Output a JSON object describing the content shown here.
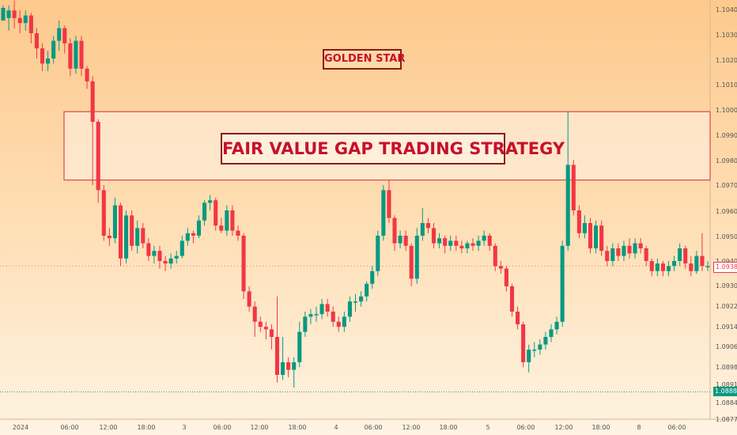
{
  "chart_data": {
    "type": "candlestick",
    "colors": {
      "up": "#089981",
      "down": "#f23645",
      "zone_border": "#e0454f",
      "dotted_line": "#3c8a73"
    },
    "annotations": {
      "golden_star": "GOLDEN STAR",
      "strategy_title": "FAIR VALUE GAP TRADING STRATEGY"
    },
    "fvg_zone": {
      "top": 1.0999,
      "bottom": 1.0972
    },
    "y_ticks": [
      "1.10400",
      "1.10300",
      "1.10200",
      "1.10100",
      "1.10000",
      "1.09900",
      "1.09800",
      "1.09700",
      "1.09600",
      "1.09500",
      "1.09400",
      "1.09300",
      "1.09220",
      "1.09140",
      "1.09060",
      "1.08980",
      "1.08910",
      "1.08840",
      "1.08775"
    ],
    "x_ticks": [
      "2024",
      "06:00",
      "12:00",
      "18:00",
      "3",
      "06:00",
      "12:00",
      "18:00",
      "4",
      "06:00",
      "12:00",
      "18:00",
      "5",
      "06:00",
      "12:00",
      "18:00",
      "8",
      "06:00"
    ],
    "price_tags": {
      "current": "1.09380",
      "last": "1.08883"
    },
    "last_price_line": 1.08883,
    "candles": [
      [
        1.1035,
        1.104,
        1.1036,
        1.1041
      ],
      [
        1.1036,
        1.1039,
        1.1031,
        1.1041
      ],
      [
        1.1039,
        1.1036,
        1.1032,
        1.1043
      ],
      [
        1.1036,
        1.1034,
        1.103,
        1.1039
      ],
      [
        1.1034,
        1.1037,
        1.1031,
        1.1039
      ],
      [
        1.1037,
        1.103,
        1.1026,
        1.1038
      ],
      [
        1.103,
        1.1024,
        1.102,
        1.1032
      ],
      [
        1.1024,
        1.1018,
        1.1015,
        1.1026
      ],
      [
        1.1018,
        1.102,
        1.1015,
        1.1023
      ],
      [
        1.102,
        1.1027,
        1.1018,
        1.1029
      ],
      [
        1.1027,
        1.1032,
        1.1023,
        1.1035
      ],
      [
        1.1032,
        1.1026,
        1.1022,
        1.1033
      ],
      [
        1.1026,
        1.1016,
        1.1013,
        1.1028
      ],
      [
        1.1016,
        1.1027,
        1.1014,
        1.1029
      ],
      [
        1.1027,
        1.1016,
        1.1013,
        1.1029
      ],
      [
        1.1016,
        1.1011,
        1.1008,
        1.1017
      ],
      [
        1.1011,
        1.0995,
        1.097,
        1.1013
      ],
      [
        1.0995,
        1.0968,
        1.0963,
        1.0996
      ],
      [
        1.0968,
        1.095,
        1.0948,
        1.097
      ],
      [
        1.095,
        1.0949,
        1.0946,
        1.0953
      ],
      [
        1.0949,
        1.0962,
        1.0947,
        1.0965
      ],
      [
        1.0962,
        1.0941,
        1.0938,
        1.0963
      ],
      [
        1.0941,
        1.0958,
        1.0939,
        1.096
      ],
      [
        1.0958,
        1.0946,
        1.0944,
        1.096
      ],
      [
        1.0946,
        1.0953,
        1.0943,
        1.0956
      ],
      [
        1.0953,
        1.0947,
        1.0945,
        1.0955
      ],
      [
        1.0947,
        1.0942,
        1.094,
        1.0949
      ],
      [
        1.0942,
        1.0944,
        1.0939,
        1.0946
      ],
      [
        1.0944,
        1.094,
        1.0937,
        1.0946
      ],
      [
        1.094,
        1.0939,
        1.0936,
        1.0942
      ],
      [
        1.0939,
        1.0941,
        1.0937,
        1.0943
      ],
      [
        1.0941,
        1.0942,
        1.0939,
        1.0944
      ],
      [
        1.0942,
        1.0948,
        1.0941,
        1.095
      ],
      [
        1.0948,
        1.0951,
        1.0946,
        1.0953
      ],
      [
        1.0951,
        1.095,
        1.0947,
        1.0952
      ],
      [
        1.095,
        1.0956,
        1.0949,
        1.0958
      ],
      [
        1.0956,
        1.0963,
        1.0954,
        1.0964
      ],
      [
        1.0963,
        1.0964,
        1.096,
        1.0966
      ],
      [
        1.0964,
        1.0954,
        1.0952,
        1.0965
      ],
      [
        1.0954,
        1.0952,
        1.0951,
        1.0957
      ],
      [
        1.0952,
        1.096,
        1.095,
        1.0962
      ],
      [
        1.096,
        1.0952,
        1.095,
        1.0962
      ],
      [
        1.0952,
        1.095,
        1.0948,
        1.0954
      ],
      [
        1.095,
        1.0928,
        1.0925,
        1.0951
      ],
      [
        1.0928,
        1.0922,
        1.092,
        1.093
      ],
      [
        1.0922,
        1.0916,
        1.091,
        1.0924
      ],
      [
        1.0916,
        1.0914,
        1.0912,
        1.0918
      ],
      [
        1.0914,
        1.0913,
        1.0909,
        1.0916
      ],
      [
        1.0913,
        1.091,
        1.0905,
        1.0915
      ],
      [
        1.091,
        1.0895,
        1.0892,
        1.0926
      ],
      [
        1.0895,
        1.09,
        1.0893,
        1.091
      ],
      [
        1.09,
        1.0897,
        1.0894,
        1.0902
      ],
      [
        1.0897,
        1.09,
        1.089,
        1.0902
      ],
      [
        1.09,
        1.0912,
        1.0898,
        1.0916
      ],
      [
        1.0912,
        1.0918,
        1.091,
        1.092
      ],
      [
        1.0918,
        1.0919,
        1.0915,
        1.0921
      ],
      [
        1.0919,
        1.0919,
        1.0916,
        1.0922
      ],
      [
        1.0919,
        1.0923,
        1.0917,
        1.0925
      ],
      [
        1.0923,
        1.092,
        1.0918,
        1.0925
      ],
      [
        1.092,
        1.0916,
        1.0914,
        1.0922
      ],
      [
        1.0916,
        1.0914,
        1.0912,
        1.0918
      ],
      [
        1.0914,
        1.0918,
        1.0912,
        1.092
      ],
      [
        1.0918,
        1.0924,
        1.0916,
        1.0926
      ],
      [
        1.0924,
        1.0924,
        1.092,
        1.0927
      ],
      [
        1.0924,
        1.0926,
        1.0922,
        1.0928
      ],
      [
        1.0926,
        1.0931,
        1.0924,
        1.0932
      ],
      [
        1.0931,
        1.0936,
        1.0929,
        1.0938
      ],
      [
        1.0936,
        1.095,
        1.0934,
        1.0952
      ],
      [
        1.095,
        1.0968,
        1.0948,
        1.097
      ],
      [
        1.0968,
        1.0957,
        1.0955,
        1.0972
      ],
      [
        1.0957,
        1.0947,
        1.0944,
        1.0958
      ],
      [
        1.0947,
        1.095,
        1.0945,
        1.0952
      ],
      [
        1.095,
        1.0946,
        1.0944,
        1.0952
      ],
      [
        1.0946,
        1.0933,
        1.093,
        1.0947
      ],
      [
        1.0933,
        1.095,
        1.0931,
        1.0953
      ],
      [
        1.095,
        1.0955,
        1.0948,
        1.0961
      ],
      [
        1.0955,
        1.0953,
        1.0951,
        1.0957
      ],
      [
        1.0953,
        1.0947,
        1.0945,
        1.0955
      ],
      [
        1.0947,
        1.0949,
        1.0945,
        1.0951
      ],
      [
        1.0949,
        1.0946,
        1.0943,
        1.095
      ],
      [
        1.0946,
        1.0948,
        1.0944,
        1.095
      ],
      [
        1.0948,
        1.0946,
        1.0944,
        1.095
      ],
      [
        1.0946,
        1.0945,
        1.0943,
        1.0948
      ],
      [
        1.0945,
        1.0947,
        1.0943,
        1.0948
      ],
      [
        1.0947,
        1.0946,
        1.0944,
        1.0949
      ],
      [
        1.0946,
        1.0948,
        1.0944,
        1.095
      ],
      [
        1.0948,
        1.095,
        1.0946,
        1.0952
      ],
      [
        1.095,
        1.0946,
        1.0944,
        1.0951
      ],
      [
        1.0946,
        1.0938,
        1.0936,
        1.0947
      ],
      [
        1.0938,
        1.0937,
        1.0935,
        1.094
      ],
      [
        1.0937,
        1.093,
        1.0928,
        1.0938
      ],
      [
        1.093,
        1.092,
        1.0918,
        1.0931
      ],
      [
        1.092,
        1.0915,
        1.0913,
        1.0922
      ],
      [
        1.0915,
        1.09,
        1.0898,
        1.0916
      ],
      [
        1.09,
        1.0905,
        1.0896,
        1.0907
      ],
      [
        1.0905,
        1.0905,
        1.0902,
        1.0908
      ],
      [
        1.0905,
        1.0907,
        1.0903,
        1.0909
      ],
      [
        1.0907,
        1.091,
        1.0905,
        1.0912
      ],
      [
        1.091,
        1.0913,
        1.0908,
        1.0915
      ],
      [
        1.0913,
        1.0916,
        1.0911,
        1.0918
      ],
      [
        1.0916,
        1.0946,
        1.0914,
        1.0948
      ],
      [
        1.0946,
        1.0978,
        1.0944,
        1.0999
      ],
      [
        1.0978,
        1.096,
        1.0958,
        1.098
      ],
      [
        1.096,
        1.0951,
        1.0949,
        1.0962
      ],
      [
        1.0951,
        1.0955,
        1.0949,
        1.0958
      ],
      [
        1.0955,
        1.0945,
        1.0943,
        1.0957
      ],
      [
        1.0945,
        1.0954,
        1.0943,
        1.0956
      ],
      [
        1.0954,
        1.0944,
        1.0942,
        1.0956
      ],
      [
        1.0944,
        1.094,
        1.0938,
        1.0946
      ],
      [
        1.094,
        1.0945,
        1.0938,
        1.0947
      ],
      [
        1.0945,
        1.0942,
        1.094,
        1.0947
      ],
      [
        1.0942,
        1.0946,
        1.094,
        1.0948
      ],
      [
        1.0946,
        1.0943,
        1.0941,
        1.0949
      ],
      [
        1.0943,
        1.0947,
        1.0941,
        1.0949
      ],
      [
        1.0947,
        1.0945,
        1.0943,
        1.0949
      ],
      [
        1.0945,
        1.094,
        1.0938,
        1.0946
      ],
      [
        1.094,
        1.0936,
        1.0934,
        1.0941
      ],
      [
        1.0936,
        1.0939,
        1.0934,
        1.0941
      ],
      [
        1.0939,
        1.0936,
        1.0934,
        1.094
      ],
      [
        1.0936,
        1.0938,
        1.0934,
        1.094
      ],
      [
        1.0938,
        1.094,
        1.0936,
        1.0942
      ],
      [
        1.094,
        1.0945,
        1.0938,
        1.0947
      ],
      [
        1.0945,
        1.0939,
        1.0937,
        1.0946
      ],
      [
        1.0939,
        1.0936,
        1.0934,
        1.0942
      ],
      [
        1.0936,
        1.0942,
        1.0935,
        1.0944
      ],
      [
        1.0942,
        1.0938,
        1.0936,
        1.0951
      ],
      [
        1.0938,
        1.0938,
        1.0936,
        1.094
      ]
    ]
  }
}
